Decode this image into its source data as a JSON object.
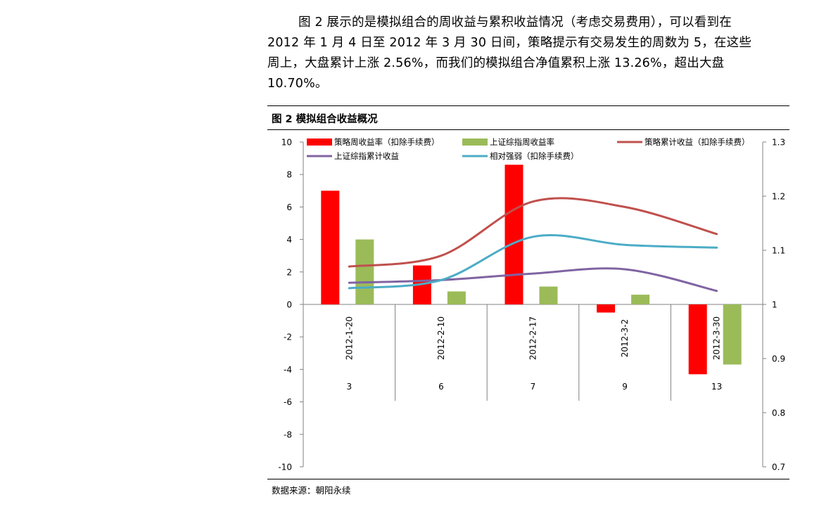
{
  "paragraph": {
    "lines": [
      "图 2 展示的是模拟组合的周收益与累积收益情况（考虑交易费用），可以看到在",
      "2012 年 1 月 4 日至 2012 年 3 月 30 日间，策略提示有交易发生的周数为 5，在这些",
      "周上，大盘累计上涨  2.56%，而我们的模拟组合净值累积上涨  13.26%，超出大盘",
      "10.70%。"
    ]
  },
  "figure": {
    "title": "图 2  模拟组合收益概况",
    "source": "数据来源：朝阳永续"
  },
  "chart_data": {
    "type": "bar",
    "categories": [
      "2012-1-20",
      "2012-2-10",
      "2012-2-17",
      "2012-3-2",
      "2012-3-30"
    ],
    "category_sublabels": [
      "3",
      "6",
      "7",
      "9",
      "13"
    ],
    "y_left": {
      "lim": [
        -10,
        10
      ],
      "ticks": [
        10,
        8,
        6,
        4,
        2,
        0,
        -2,
        -4,
        -6,
        -8,
        -10
      ]
    },
    "y_right": {
      "lim": [
        0.7,
        1.3
      ],
      "ticks": [
        "1.3",
        "1.2",
        "1.1",
        "1",
        "0.9",
        "0.8",
        "0.7"
      ]
    },
    "grid": false,
    "legend_position": "top",
    "bar_series": [
      {
        "name": "策略周收益率（扣除手续费）",
        "color": "#ff0000",
        "axis": "left",
        "values": [
          7.0,
          2.4,
          8.6,
          -0.5,
          -4.3
        ]
      },
      {
        "name": "上证综指周收益率",
        "color": "#9bbb59",
        "axis": "left",
        "values": [
          4.0,
          0.8,
          1.1,
          0.6,
          -3.7
        ]
      }
    ],
    "line_series": [
      {
        "name": "策略累计收益（扣除手续费）",
        "color": "#c0504d",
        "axis": "right",
        "values": [
          1.07,
          1.09,
          1.19,
          1.18,
          1.13
        ]
      },
      {
        "name": "上证综指累计收益",
        "color": "#8064a2",
        "axis": "right",
        "values": [
          1.04,
          1.045,
          1.057,
          1.065,
          1.025
        ]
      },
      {
        "name": "相对强弱（扣除手续费）",
        "color": "#4bacc6",
        "axis": "right",
        "values": [
          1.03,
          1.045,
          1.125,
          1.11,
          1.105
        ]
      }
    ]
  }
}
